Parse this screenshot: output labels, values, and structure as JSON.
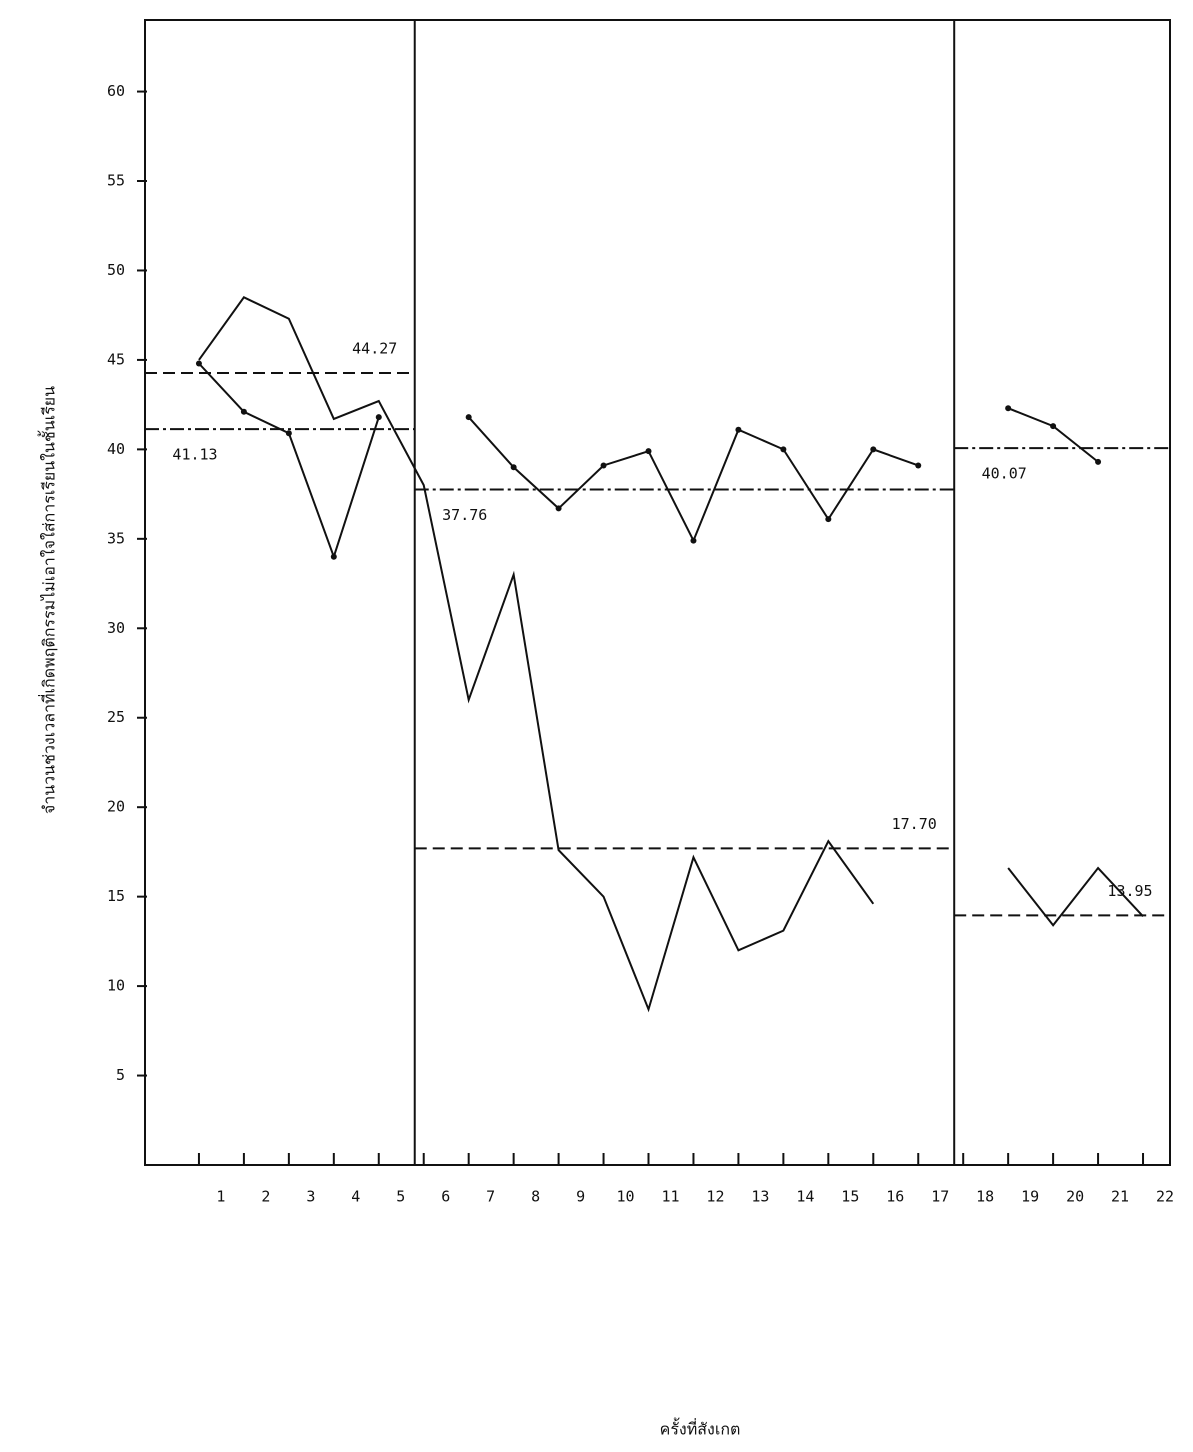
{
  "chart_data": {
    "type": "line",
    "y_label": "จำนวนช่วงเวลาที่เกิดพฤติกรรมไม่เอาใจใส่การเรียนในชั้นเรียน",
    "x_label": "ครั้งที่สังเกต",
    "categories": [
      "1",
      "2",
      "3",
      "4",
      "5",
      "6",
      "7",
      "8",
      "9",
      "10",
      "11",
      "12",
      "13",
      "14",
      "15",
      "16",
      "17",
      "18",
      "19",
      "20",
      "21",
      "22"
    ],
    "series": [
      {
        "color": "#111111",
        "markers": false,
        "dash": "12 6",
        "values": [
          45,
          48.5,
          47.3,
          41.7,
          42.7,
          38,
          26,
          33,
          17.6,
          15,
          8.7,
          17.2,
          12,
          13.1,
          18.1,
          14.6,
          null,
          null,
          16.6,
          13.4,
          16.6,
          13.9
        ],
        "means": [
          44.27,
          17.7,
          13.95
        ],
        "mean_labels": [
          "44.27",
          "17.70",
          "13.95"
        ]
      },
      {
        "color": "#111111",
        "markers": true,
        "dash": "14 4 3 4",
        "values": [
          44.8,
          42.1,
          40.9,
          34,
          41.8,
          null,
          41.8,
          39,
          36.7,
          39.1,
          39.9,
          34.9,
          41.1,
          40,
          36.1,
          40,
          39.1,
          null,
          42.3,
          41.3,
          39.3,
          null
        ],
        "means": [
          41.13,
          37.76,
          40.07
        ],
        "mean_labels": [
          "41.13",
          "37.76",
          "40.07"
        ]
      }
    ],
    "phase_lines": [
      5.8,
      17.8
    ],
    "xlim": [
      -0.2,
      22.6
    ],
    "ylim": [
      0,
      64
    ],
    "yticks": [
      5,
      10,
      15,
      20,
      25,
      30,
      35,
      40,
      45,
      50,
      55,
      60
    ]
  }
}
